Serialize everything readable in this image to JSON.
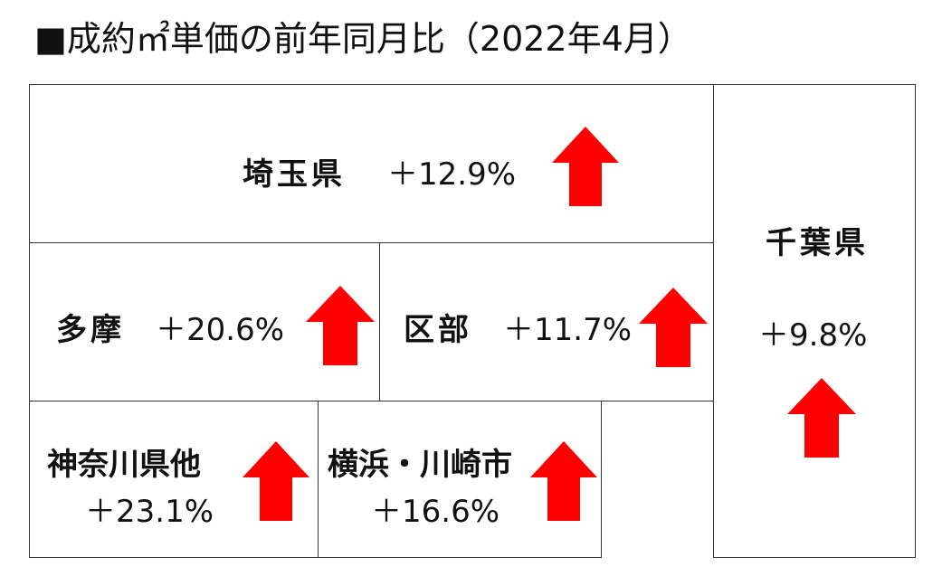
{
  "title": "■成約㎡単価の前年同月比（2022年4月）",
  "colors": {
    "arrow": "#ff0000",
    "border": "#333333"
  },
  "regions": {
    "saitama": {
      "name": "埼玉県",
      "change": "＋12.9%",
      "direction": "up",
      "icon": "up-arrow-icon"
    },
    "chiba": {
      "name": "千葉県",
      "change": "＋9.8%",
      "direction": "up",
      "icon": "up-arrow-icon"
    },
    "tama": {
      "name": "多摩",
      "change": "＋20.6%",
      "direction": "up",
      "icon": "up-arrow-icon"
    },
    "kubu": {
      "name": "区部",
      "change": "＋11.7%",
      "direction": "up",
      "icon": "up-arrow-icon"
    },
    "kanagawa": {
      "name": "神奈川県他",
      "change": "＋23.1%",
      "direction": "up",
      "icon": "up-arrow-icon"
    },
    "yokohama": {
      "name": "横浜・川崎市",
      "change": "＋16.6%",
      "direction": "up",
      "icon": "up-arrow-icon"
    }
  }
}
